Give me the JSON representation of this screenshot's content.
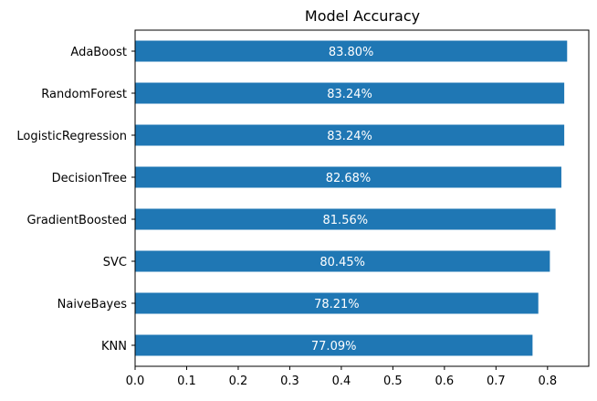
{
  "chart_data": {
    "type": "bar",
    "orientation": "horizontal",
    "title": "Model Accuracy",
    "xlabel": "",
    "ylabel": "",
    "categories": [
      "KNN",
      "NaiveBayes",
      "SVC",
      "GradientBoosted",
      "DecisionTree",
      "LogisticRegression",
      "RandomForest",
      "AdaBoost"
    ],
    "values": [
      0.7709,
      0.7821,
      0.8045,
      0.8156,
      0.8268,
      0.8324,
      0.8324,
      0.838
    ],
    "data_labels": [
      "77.09%",
      "78.21%",
      "80.45%",
      "81.56%",
      "82.68%",
      "83.24%",
      "83.24%",
      "83.80%"
    ],
    "xlim": [
      0.0,
      0.88
    ],
    "xticks": [
      0.0,
      0.1,
      0.2,
      0.3,
      0.4,
      0.5,
      0.6,
      0.7,
      0.8
    ],
    "xtick_labels": [
      "0.0",
      "0.1",
      "0.2",
      "0.3",
      "0.4",
      "0.5",
      "0.6",
      "0.7",
      "0.8"
    ],
    "grid": false,
    "legend": false,
    "colors": {
      "bar": "#1f77b4",
      "data_label": "#ffffff",
      "axis": "#000000",
      "text": "#000000"
    }
  }
}
